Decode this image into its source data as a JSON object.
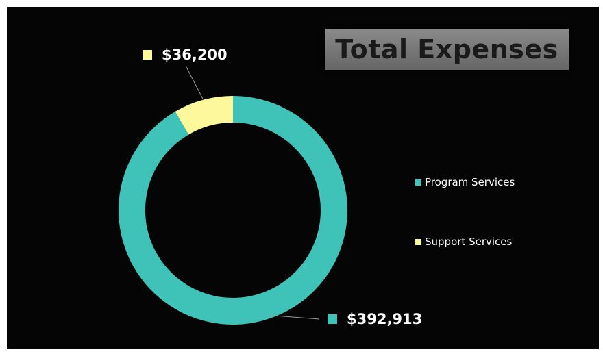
{
  "chart_data": {
    "type": "pie",
    "variant": "donut",
    "title": "Total Expenses",
    "categories": [
      "Program Services",
      "Support Services"
    ],
    "values": [
      392913,
      36200
    ],
    "data_labels": [
      "$392,913",
      "$36,200"
    ],
    "colors": [
      "#3fc3b9",
      "#fdf89c"
    ],
    "legend_position": "right",
    "background": "#050505"
  }
}
